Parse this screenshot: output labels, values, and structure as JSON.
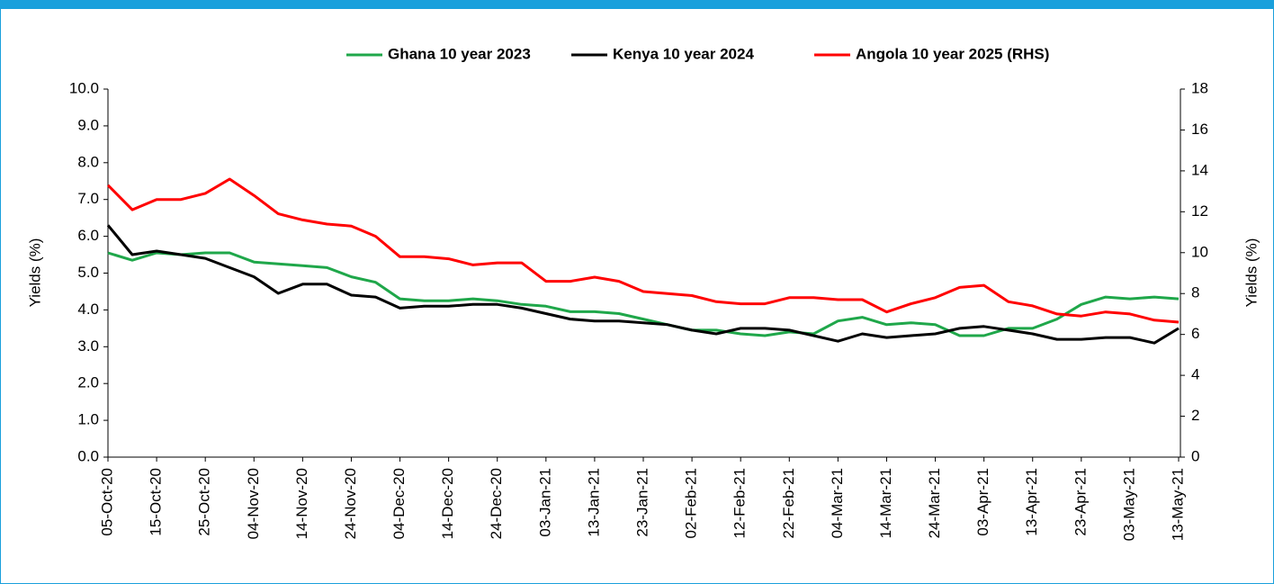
{
  "chart_data": {
    "type": "line",
    "ylabel": "Yields (%)",
    "y2label": "Yields (%)",
    "x": [
      "2020-10-05",
      "2020-10-10",
      "2020-10-15",
      "2020-10-20",
      "2020-10-25",
      "2020-10-30",
      "2020-11-04",
      "2020-11-09",
      "2020-11-14",
      "2020-11-19",
      "2020-11-24",
      "2020-11-29",
      "2020-12-04",
      "2020-12-09",
      "2020-12-14",
      "2020-12-19",
      "2020-12-24",
      "2020-12-29",
      "2021-01-03",
      "2021-01-08",
      "2021-01-13",
      "2021-01-18",
      "2021-01-23",
      "2021-01-28",
      "2021-02-02",
      "2021-02-07",
      "2021-02-12",
      "2021-02-17",
      "2021-02-22",
      "2021-02-27",
      "2021-03-04",
      "2021-03-09",
      "2021-03-14",
      "2021-03-19",
      "2021-03-24",
      "2021-03-29",
      "2021-04-03",
      "2021-04-08",
      "2021-04-13",
      "2021-04-18",
      "2021-04-23",
      "2021-04-28",
      "2021-05-03",
      "2021-05-08",
      "2021-05-13"
    ],
    "series": [
      {
        "name": "Ghana 10 year 2023",
        "color": "#1fa74a",
        "values": [
          5.55,
          5.35,
          5.55,
          5.5,
          5.55,
          5.55,
          5.3,
          5.25,
          5.2,
          5.15,
          4.9,
          4.75,
          4.3,
          4.25,
          4.25,
          4.3,
          4.25,
          4.15,
          4.1,
          3.95,
          3.95,
          3.9,
          3.75,
          3.6,
          3.45,
          3.45,
          3.35,
          3.3,
          3.4,
          3.35,
          3.7,
          3.8,
          3.6,
          3.65,
          3.6,
          3.3,
          3.3,
          3.5,
          3.5,
          3.75,
          4.15,
          4.35,
          4.3,
          4.35,
          4.3
        ]
      },
      {
        "name": "Kenya 10 year 2024",
        "color": "#000000",
        "values": [
          6.3,
          5.5,
          5.6,
          5.5,
          5.4,
          5.15,
          4.9,
          4.45,
          4.7,
          4.7,
          4.4,
          4.35,
          4.05,
          4.1,
          4.1,
          4.15,
          4.15,
          4.05,
          3.9,
          3.75,
          3.7,
          3.7,
          3.65,
          3.6,
          3.45,
          3.35,
          3.5,
          3.5,
          3.45,
          3.3,
          3.15,
          3.35,
          3.25,
          3.3,
          3.35,
          3.5,
          3.55,
          3.45,
          3.35,
          3.2,
          3.2,
          3.25,
          3.25,
          3.1,
          3.5
        ]
      },
      {
        "name": "Angola 10 year 2025 (RHS)",
        "color": "#ff0000",
        "axis": "y2",
        "values": [
          13.3,
          12.1,
          12.6,
          12.6,
          12.9,
          13.6,
          12.8,
          11.9,
          11.6,
          11.4,
          11.3,
          10.8,
          9.8,
          9.8,
          9.7,
          9.4,
          9.5,
          9.5,
          8.6,
          8.6,
          8.8,
          8.6,
          8.1,
          8.0,
          7.9,
          7.6,
          7.5,
          7.5,
          7.8,
          7.8,
          7.7,
          7.7,
          7.1,
          7.5,
          7.8,
          8.3,
          8.4,
          7.6,
          7.4,
          7.0,
          6.9,
          7.1,
          7.0,
          6.7,
          6.6
        ]
      }
    ],
    "xlim": [
      "2020-10-05",
      "2021-05-13"
    ],
    "xticks": [
      {
        "value": "2020-10-05",
        "label": "05-Oct-20"
      },
      {
        "value": "2020-10-15",
        "label": "15-Oct-20"
      },
      {
        "value": "2020-10-25",
        "label": "25-Oct-20"
      },
      {
        "value": "2020-11-04",
        "label": "04-Nov-20"
      },
      {
        "value": "2020-11-14",
        "label": "14-Nov-20"
      },
      {
        "value": "2020-11-24",
        "label": "24-Nov-20"
      },
      {
        "value": "2020-12-04",
        "label": "04-Dec-20"
      },
      {
        "value": "2020-12-14",
        "label": "14-Dec-20"
      },
      {
        "value": "2020-12-24",
        "label": "24-Dec-20"
      },
      {
        "value": "2021-01-03",
        "label": "03-Jan-21"
      },
      {
        "value": "2021-01-13",
        "label": "13-Jan-21"
      },
      {
        "value": "2021-01-23",
        "label": "23-Jan-21"
      },
      {
        "value": "2021-02-02",
        "label": "02-Feb-21"
      },
      {
        "value": "2021-02-12",
        "label": "12-Feb-21"
      },
      {
        "value": "2021-02-22",
        "label": "22-Feb-21"
      },
      {
        "value": "2021-03-04",
        "label": "04-Mar-21"
      },
      {
        "value": "2021-03-14",
        "label": "14-Mar-21"
      },
      {
        "value": "2021-03-24",
        "label": "24-Mar-21"
      },
      {
        "value": "2021-04-03",
        "label": "03-Apr-21"
      },
      {
        "value": "2021-04-13",
        "label": "13-Apr-21"
      },
      {
        "value": "2021-04-23",
        "label": "23-Apr-21"
      },
      {
        "value": "2021-05-03",
        "label": "03-May-21"
      },
      {
        "value": "2021-05-13",
        "label": "13-May-21"
      }
    ],
    "ylim": [
      0,
      10
    ],
    "yticks": [
      {
        "value": 0,
        "label": "0.0"
      },
      {
        "value": 1,
        "label": "1.0"
      },
      {
        "value": 2,
        "label": "2.0"
      },
      {
        "value": 3,
        "label": "3.0"
      },
      {
        "value": 4,
        "label": "4.0"
      },
      {
        "value": 5,
        "label": "5.0"
      },
      {
        "value": 6,
        "label": "6.0"
      },
      {
        "value": 7,
        "label": "7.0"
      },
      {
        "value": 8,
        "label": "8.0"
      },
      {
        "value": 9,
        "label": "9.0"
      },
      {
        "value": 10,
        "label": "10.0"
      }
    ],
    "y2lim": [
      0,
      18
    ],
    "y2ticks": [
      0,
      2,
      4,
      6,
      8,
      10,
      12,
      14,
      16,
      18
    ],
    "grid": false,
    "legend": "top"
  }
}
